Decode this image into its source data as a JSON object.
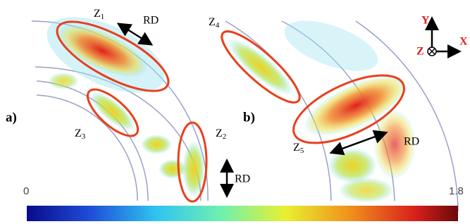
{
  "panels": [
    {
      "label": "a)"
    },
    {
      "label": "b)"
    }
  ],
  "zones": [
    {
      "letter": "Z",
      "index": "1"
    },
    {
      "letter": "Z",
      "index": "2"
    },
    {
      "letter": "Z",
      "index": "3"
    },
    {
      "letter": "Z",
      "index": "4"
    },
    {
      "letter": "Z",
      "index": "5"
    }
  ],
  "direction_labels": [
    "RD",
    "RD",
    "RD"
  ],
  "axes": {
    "y": "Y",
    "x": "X",
    "z": "Z"
  },
  "colorbar": {
    "min": 0,
    "max": 1.8
  }
}
